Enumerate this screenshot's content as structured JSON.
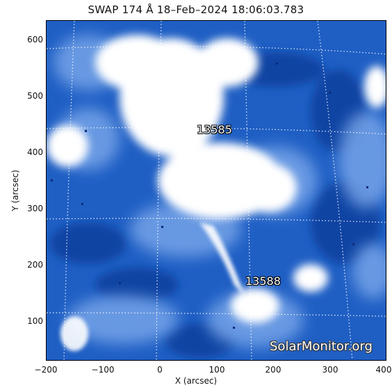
{
  "title": "SWAP 174 Å 18–Feb–2024 18:06:03.783",
  "axes": {
    "xlabel": "X (arcsec)",
    "ylabel": "Y (arcsec)",
    "xlim": [
      -200,
      400
    ],
    "ylim": [
      27,
      630
    ],
    "xticks": [
      "−200",
      "−100",
      "0",
      "100",
      "200",
      "300",
      "400"
    ],
    "yticks": [
      "100",
      "200",
      "300",
      "400",
      "500",
      "600"
    ]
  },
  "regions": [
    {
      "label": "13585",
      "x": 95,
      "y": 425
    },
    {
      "label": "13588",
      "x": 185,
      "y": 190
    }
  ],
  "watermark": "SolarMonitor.org",
  "colors": {
    "base": "#1f5fc4",
    "dark": "#0d3a9a",
    "bright": "#ffffff",
    "grid": "#ffffff"
  }
}
